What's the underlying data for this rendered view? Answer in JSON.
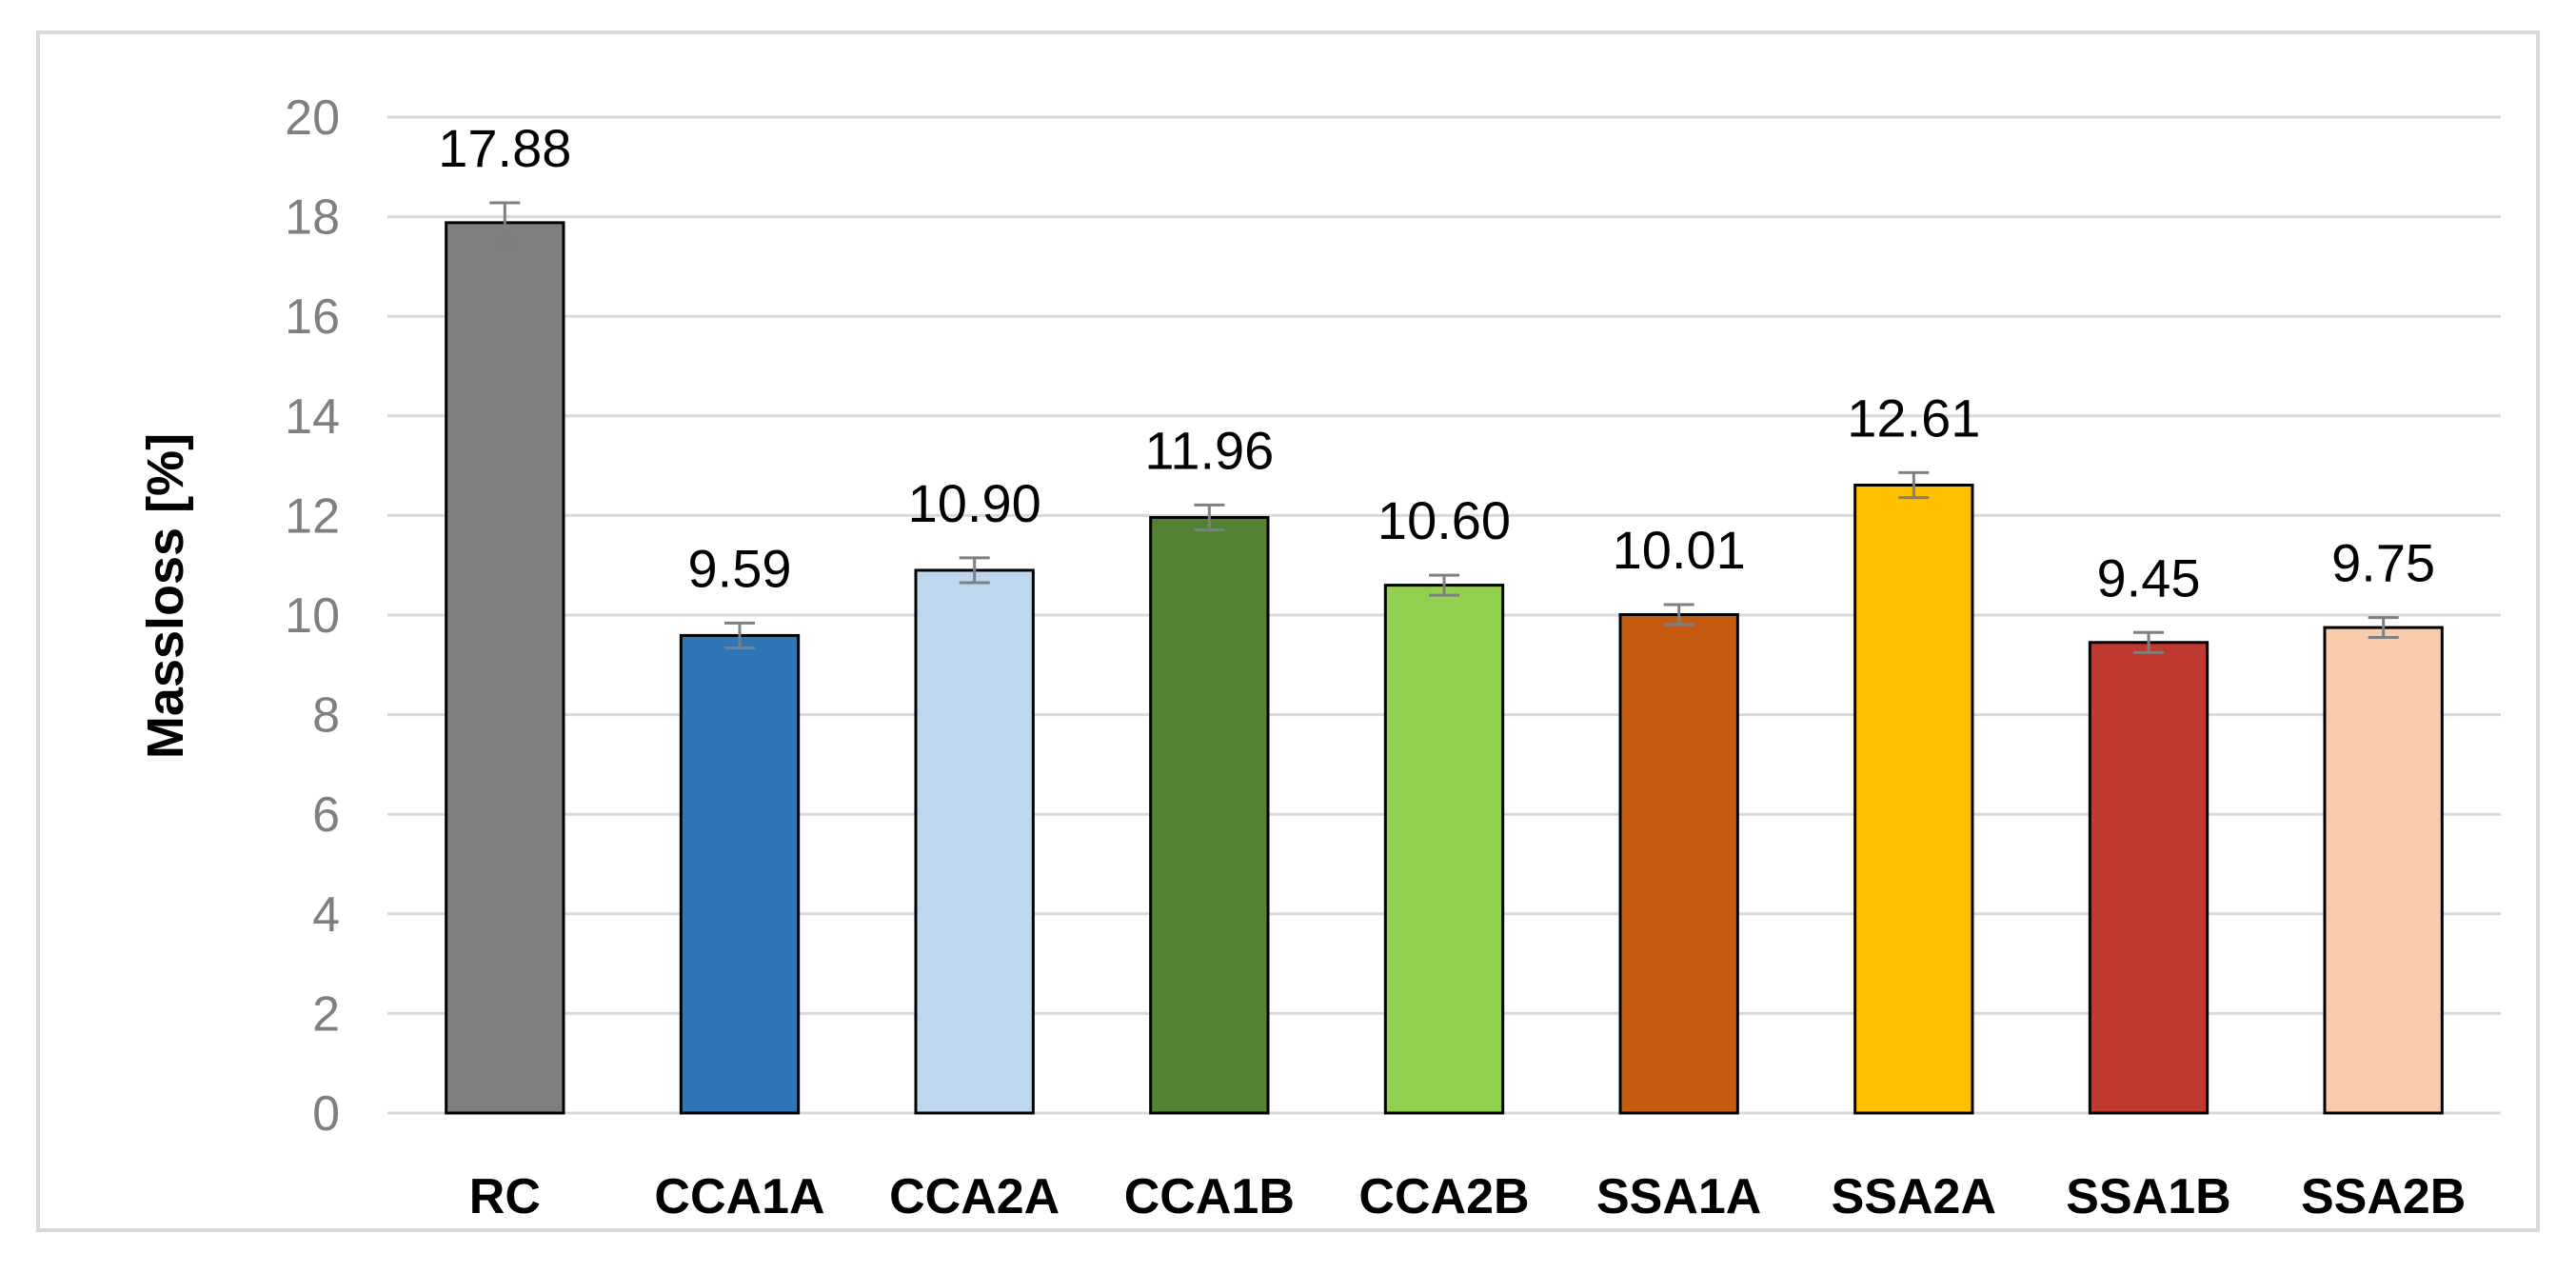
{
  "chart_data": {
    "type": "bar",
    "title": "",
    "xlabel": "",
    "ylabel": "Massloss [%]",
    "ylim": [
      0,
      20
    ],
    "yticks": [
      0,
      2,
      4,
      6,
      8,
      10,
      12,
      14,
      16,
      18,
      20
    ],
    "grid": true,
    "categories": [
      "RC",
      "CCA1A",
      "CCA2A",
      "CCA1B",
      "CCA2B",
      "SSA1A",
      "SSA2A",
      "SSA1B",
      "SSA2B"
    ],
    "values": [
      17.88,
      9.59,
      10.9,
      11.96,
      10.6,
      10.01,
      12.61,
      9.45,
      9.75
    ],
    "value_labels": [
      "17.88",
      "9.59",
      "10.90",
      "11.96",
      "10.60",
      "10.01",
      "12.61",
      "9.45",
      "9.75"
    ],
    "errors": [
      0.4,
      0.25,
      0.25,
      0.25,
      0.2,
      0.2,
      0.25,
      0.2,
      0.2
    ],
    "colors": [
      "#7f7f7f",
      "#2e75b6",
      "#bdd7ee",
      "#548235",
      "#92d050",
      "#c55a11",
      "#ffc000",
      "#c0392f",
      "#f8cbad"
    ]
  }
}
